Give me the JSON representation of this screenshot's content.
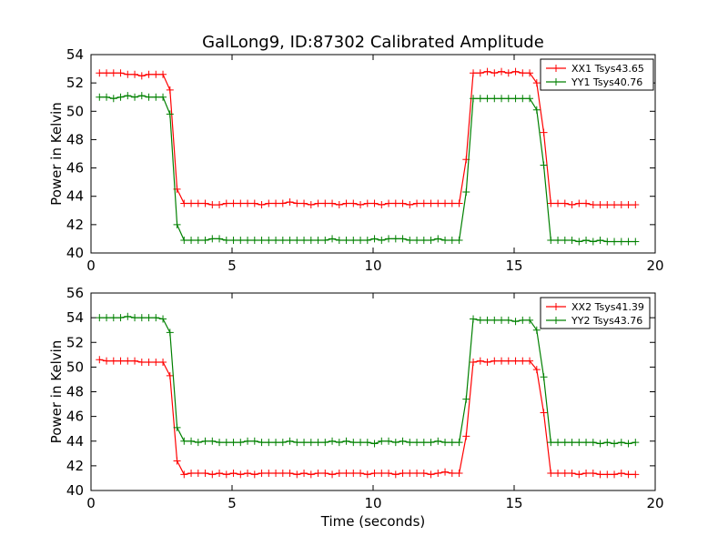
{
  "figure": {
    "title": "GalLong9, ID:87302 Calibrated Amplitude"
  },
  "chart_data": [
    {
      "type": "line",
      "title": "GalLong9, ID:87302 Calibrated Amplitude",
      "xlabel": "",
      "ylabel": "Power in Kelvin",
      "xlim": [
        0,
        20
      ],
      "ylim": [
        40,
        54
      ],
      "x_ticks": [
        0,
        5,
        10,
        15,
        20
      ],
      "y_ticks": [
        40,
        42,
        44,
        46,
        48,
        50,
        52,
        54
      ],
      "legend_position": "top-right",
      "grid": false,
      "x": [
        0.3,
        0.55,
        0.8,
        1.05,
        1.3,
        1.55,
        1.8,
        2.05,
        2.3,
        2.55,
        2.8,
        3.05,
        3.3,
        3.55,
        3.8,
        4.05,
        4.3,
        4.55,
        4.8,
        5.05,
        5.3,
        5.55,
        5.8,
        6.05,
        6.3,
        6.55,
        6.8,
        7.05,
        7.3,
        7.55,
        7.8,
        8.05,
        8.3,
        8.55,
        8.8,
        9.05,
        9.3,
        9.55,
        9.8,
        10.05,
        10.3,
        10.55,
        10.8,
        11.05,
        11.3,
        11.55,
        11.8,
        12.05,
        12.3,
        12.55,
        12.8,
        13.05,
        13.3,
        13.55,
        13.8,
        14.05,
        14.3,
        14.55,
        14.8,
        15.05,
        15.3,
        15.55,
        15.8,
        16.05,
        16.3,
        16.55,
        16.8,
        17.05,
        17.3,
        17.55,
        17.8,
        18.05,
        18.3,
        18.55,
        18.8,
        19.05,
        19.3
      ],
      "series": [
        {
          "name": "XX1 Tsys43.65",
          "color": "#ff0000",
          "values": [
            52.7,
            52.7,
            52.7,
            52.7,
            52.6,
            52.6,
            52.5,
            52.6,
            52.6,
            52.6,
            51.5,
            44.5,
            43.5,
            43.5,
            43.5,
            43.5,
            43.4,
            43.4,
            43.5,
            43.5,
            43.5,
            43.5,
            43.5,
            43.4,
            43.5,
            43.5,
            43.5,
            43.6,
            43.5,
            43.5,
            43.4,
            43.5,
            43.5,
            43.5,
            43.4,
            43.5,
            43.5,
            43.4,
            43.5,
            43.5,
            43.4,
            43.5,
            43.5,
            43.5,
            43.4,
            43.5,
            43.5,
            43.5,
            43.5,
            43.5,
            43.5,
            43.5,
            46.6,
            52.7,
            52.7,
            52.8,
            52.7,
            52.8,
            52.7,
            52.8,
            52.7,
            52.7,
            52.0,
            48.5,
            43.5,
            43.5,
            43.5,
            43.4,
            43.5,
            43.5,
            43.4,
            43.4,
            43.4,
            43.4,
            43.4,
            43.4,
            43.4
          ]
        },
        {
          "name": "YY1 Tsys40.76",
          "color": "#008000",
          "values": [
            51.0,
            51.0,
            50.9,
            51.0,
            51.1,
            51.0,
            51.1,
            51.0,
            51.0,
            51.0,
            49.8,
            42.0,
            40.9,
            40.9,
            40.9,
            40.9,
            41.0,
            41.0,
            40.9,
            40.9,
            40.9,
            40.9,
            40.9,
            40.9,
            40.9,
            40.9,
            40.9,
            40.9,
            40.9,
            40.9,
            40.9,
            40.9,
            40.9,
            41.0,
            40.9,
            40.9,
            40.9,
            40.9,
            40.9,
            41.0,
            40.9,
            41.0,
            41.0,
            41.0,
            40.9,
            40.9,
            40.9,
            40.9,
            41.0,
            40.9,
            40.9,
            40.9,
            44.3,
            50.9,
            50.9,
            50.9,
            50.9,
            50.9,
            50.9,
            50.9,
            50.9,
            50.9,
            50.1,
            46.2,
            40.9,
            40.9,
            40.9,
            40.9,
            40.8,
            40.9,
            40.8,
            40.9,
            40.8,
            40.8,
            40.8,
            40.8,
            40.8
          ]
        }
      ]
    },
    {
      "type": "line",
      "title": "",
      "xlabel": "Time (seconds)",
      "ylabel": "Power in Kelvin",
      "xlim": [
        0,
        20
      ],
      "ylim": [
        40,
        56
      ],
      "x_ticks": [
        0,
        5,
        10,
        15,
        20
      ],
      "y_ticks": [
        40,
        42,
        44,
        46,
        48,
        50,
        52,
        54,
        56
      ],
      "legend_position": "top-right",
      "grid": false,
      "x": [
        0.3,
        0.55,
        0.8,
        1.05,
        1.3,
        1.55,
        1.8,
        2.05,
        2.3,
        2.55,
        2.8,
        3.05,
        3.3,
        3.55,
        3.8,
        4.05,
        4.3,
        4.55,
        4.8,
        5.05,
        5.3,
        5.55,
        5.8,
        6.05,
        6.3,
        6.55,
        6.8,
        7.05,
        7.3,
        7.55,
        7.8,
        8.05,
        8.3,
        8.55,
        8.8,
        9.05,
        9.3,
        9.55,
        9.8,
        10.05,
        10.3,
        10.55,
        10.8,
        11.05,
        11.3,
        11.55,
        11.8,
        12.05,
        12.3,
        12.55,
        12.8,
        13.05,
        13.3,
        13.55,
        13.8,
        14.05,
        14.3,
        14.55,
        14.8,
        15.05,
        15.3,
        15.55,
        15.8,
        16.05,
        16.3,
        16.55,
        16.8,
        17.05,
        17.3,
        17.55,
        17.8,
        18.05,
        18.3,
        18.55,
        18.8,
        19.05,
        19.3
      ],
      "series": [
        {
          "name": "XX2 Tsys41.39",
          "color": "#ff0000",
          "values": [
            50.6,
            50.5,
            50.5,
            50.5,
            50.5,
            50.5,
            50.4,
            50.4,
            50.4,
            50.4,
            49.3,
            42.4,
            41.3,
            41.4,
            41.4,
            41.4,
            41.3,
            41.4,
            41.3,
            41.4,
            41.3,
            41.4,
            41.3,
            41.4,
            41.4,
            41.4,
            41.4,
            41.4,
            41.3,
            41.4,
            41.3,
            41.4,
            41.4,
            41.3,
            41.4,
            41.4,
            41.4,
            41.4,
            41.3,
            41.4,
            41.4,
            41.4,
            41.3,
            41.4,
            41.4,
            41.4,
            41.4,
            41.3,
            41.4,
            41.5,
            41.4,
            41.4,
            44.4,
            50.4,
            50.5,
            50.4,
            50.5,
            50.5,
            50.5,
            50.5,
            50.5,
            50.5,
            49.8,
            46.3,
            41.4,
            41.4,
            41.4,
            41.4,
            41.3,
            41.4,
            41.4,
            41.3,
            41.3,
            41.3,
            41.4,
            41.3,
            41.3
          ]
        },
        {
          "name": "YY2 Tsys43.76",
          "color": "#008000",
          "values": [
            54.0,
            54.0,
            54.0,
            54.0,
            54.1,
            54.0,
            54.0,
            54.0,
            54.0,
            53.9,
            52.8,
            45.1,
            44.0,
            44.0,
            43.9,
            44.0,
            44.0,
            43.9,
            43.9,
            43.9,
            43.9,
            44.0,
            44.0,
            43.9,
            43.9,
            43.9,
            43.9,
            44.0,
            43.9,
            43.9,
            43.9,
            43.9,
            43.9,
            44.0,
            43.9,
            44.0,
            43.9,
            43.9,
            43.9,
            43.8,
            44.0,
            44.0,
            43.9,
            44.0,
            43.9,
            43.9,
            43.9,
            43.9,
            44.0,
            43.9,
            43.9,
            43.9,
            47.4,
            53.9,
            53.8,
            53.8,
            53.8,
            53.8,
            53.8,
            53.7,
            53.8,
            53.8,
            53.0,
            49.2,
            43.9,
            43.9,
            43.9,
            43.9,
            43.9,
            43.9,
            43.9,
            43.8,
            43.9,
            43.8,
            43.9,
            43.8,
            43.9
          ]
        }
      ]
    }
  ]
}
